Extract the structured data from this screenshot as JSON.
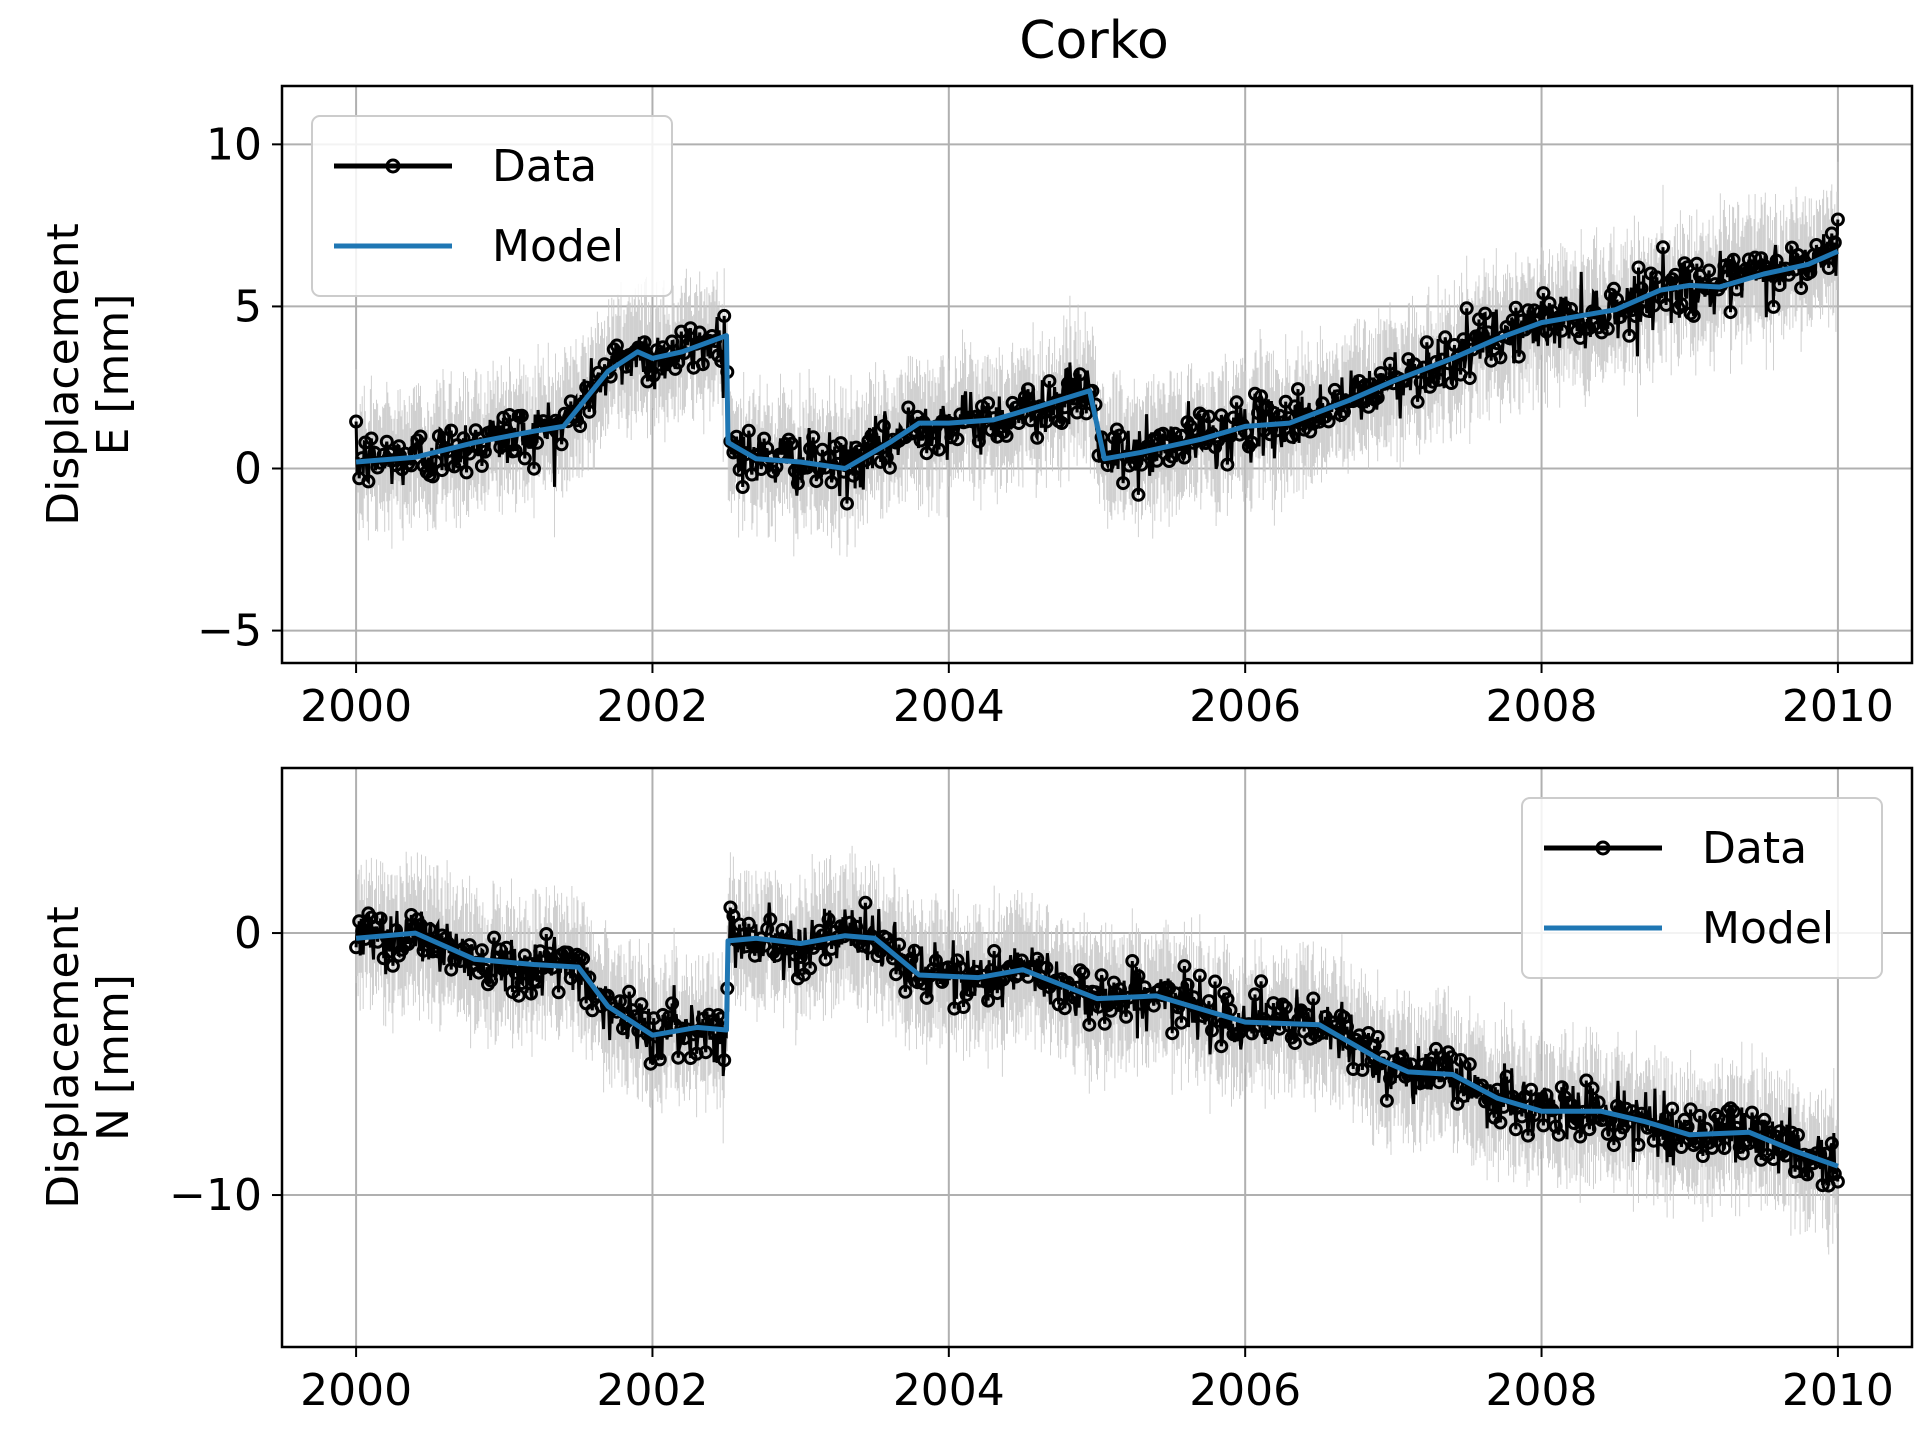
{
  "chart_data": {
    "type": "line",
    "title": "Corko",
    "legend": {
      "data_label": "Data",
      "model_label": "Model"
    },
    "colors": {
      "data": "#000000",
      "model": "#1f77b4",
      "error_bars": "#c8c8c8",
      "grid": "#b0b0b0"
    },
    "grid": true,
    "panels": [
      {
        "id": "east",
        "ylabel_line1": "Displacement",
        "ylabel_line2": "E [mm]",
        "legend_position": "top-left",
        "xlim": [
          1999.5,
          2010.5
        ],
        "ylim": [
          -6,
          11.8
        ],
        "xticks": [
          2000,
          2002,
          2004,
          2006,
          2008,
          2010
        ],
        "xtick_labels": [
          "2000",
          "2002",
          "2004",
          "2006",
          "2008",
          "2010"
        ],
        "yticks": [
          -5,
          0,
          5,
          10
        ],
        "ytick_labels": [
          "−5",
          "0",
          "5",
          "10"
        ],
        "series": [
          {
            "name": "Model",
            "x": [
              2000.0,
              2000.4,
              2000.8,
              2001.2,
              2001.4,
              2001.7,
              2001.9,
              2002.0,
              2002.2,
              2002.5,
              2002.51,
              2002.7,
              2003.0,
              2003.3,
              2003.6,
              2003.8,
              2004.0,
              2004.3,
              2004.6,
              2004.95,
              2005.05,
              2005.3,
              2005.7,
              2006.0,
              2006.3,
              2006.7,
              2007.0,
              2007.4,
              2007.7,
              2008.0,
              2008.5,
              2008.8,
              2009.0,
              2009.2,
              2009.5,
              2009.8,
              2010.0
            ],
            "y": [
              0.2,
              0.35,
              0.8,
              1.15,
              1.3,
              3.0,
              3.6,
              3.4,
              3.6,
              4.1,
              0.8,
              0.3,
              0.2,
              0.0,
              0.8,
              1.4,
              1.4,
              1.5,
              1.9,
              2.4,
              0.3,
              0.5,
              0.9,
              1.3,
              1.4,
              2.1,
              2.7,
              3.4,
              4.0,
              4.5,
              4.9,
              5.5,
              5.65,
              5.6,
              6.0,
              6.3,
              6.7
            ]
          },
          {
            "name": "Data",
            "noise_sd": 0.45,
            "error_bar_halfwidth": 1.5
          }
        ]
      },
      {
        "id": "north",
        "ylabel_line1": "Displacement",
        "ylabel_line2": "N [mm]",
        "legend_position": "top-right",
        "xlim": [
          1999.5,
          2010.5
        ],
        "ylim": [
          -15.8,
          6.3
        ],
        "xticks": [
          2000,
          2002,
          2004,
          2006,
          2008,
          2010
        ],
        "xtick_labels": [
          "2000",
          "2002",
          "2004",
          "2006",
          "2008",
          "2010"
        ],
        "yticks": [
          -10,
          0
        ],
        "ytick_labels": [
          "−10",
          "0"
        ],
        "series": [
          {
            "name": "Model",
            "x": [
              2000.0,
              2000.4,
              2000.8,
              2001.2,
              2001.5,
              2001.7,
              2002.0,
              2002.3,
              2002.5,
              2002.51,
              2002.7,
              2003.0,
              2003.3,
              2003.5,
              2003.8,
              2004.2,
              2004.5,
              2005.0,
              2005.4,
              2005.7,
              2006.0,
              2006.5,
              2006.9,
              2007.1,
              2007.4,
              2007.7,
              2008.0,
              2008.4,
              2008.7,
              2009.0,
              2009.4,
              2009.7,
              2010.0
            ],
            "y": [
              -0.2,
              0.0,
              -1.0,
              -1.2,
              -1.3,
              -2.8,
              -3.9,
              -3.6,
              -3.7,
              -0.3,
              -0.2,
              -0.4,
              -0.1,
              -0.2,
              -1.6,
              -1.7,
              -1.4,
              -2.5,
              -2.4,
              -2.9,
              -3.4,
              -3.5,
              -4.8,
              -5.3,
              -5.4,
              -6.3,
              -6.8,
              -6.8,
              -7.2,
              -7.7,
              -7.6,
              -8.3,
              -8.9
            ]
          },
          {
            "name": "Data",
            "noise_sd": 0.55,
            "error_bar_halfwidth": 1.9
          }
        ]
      }
    ]
  }
}
